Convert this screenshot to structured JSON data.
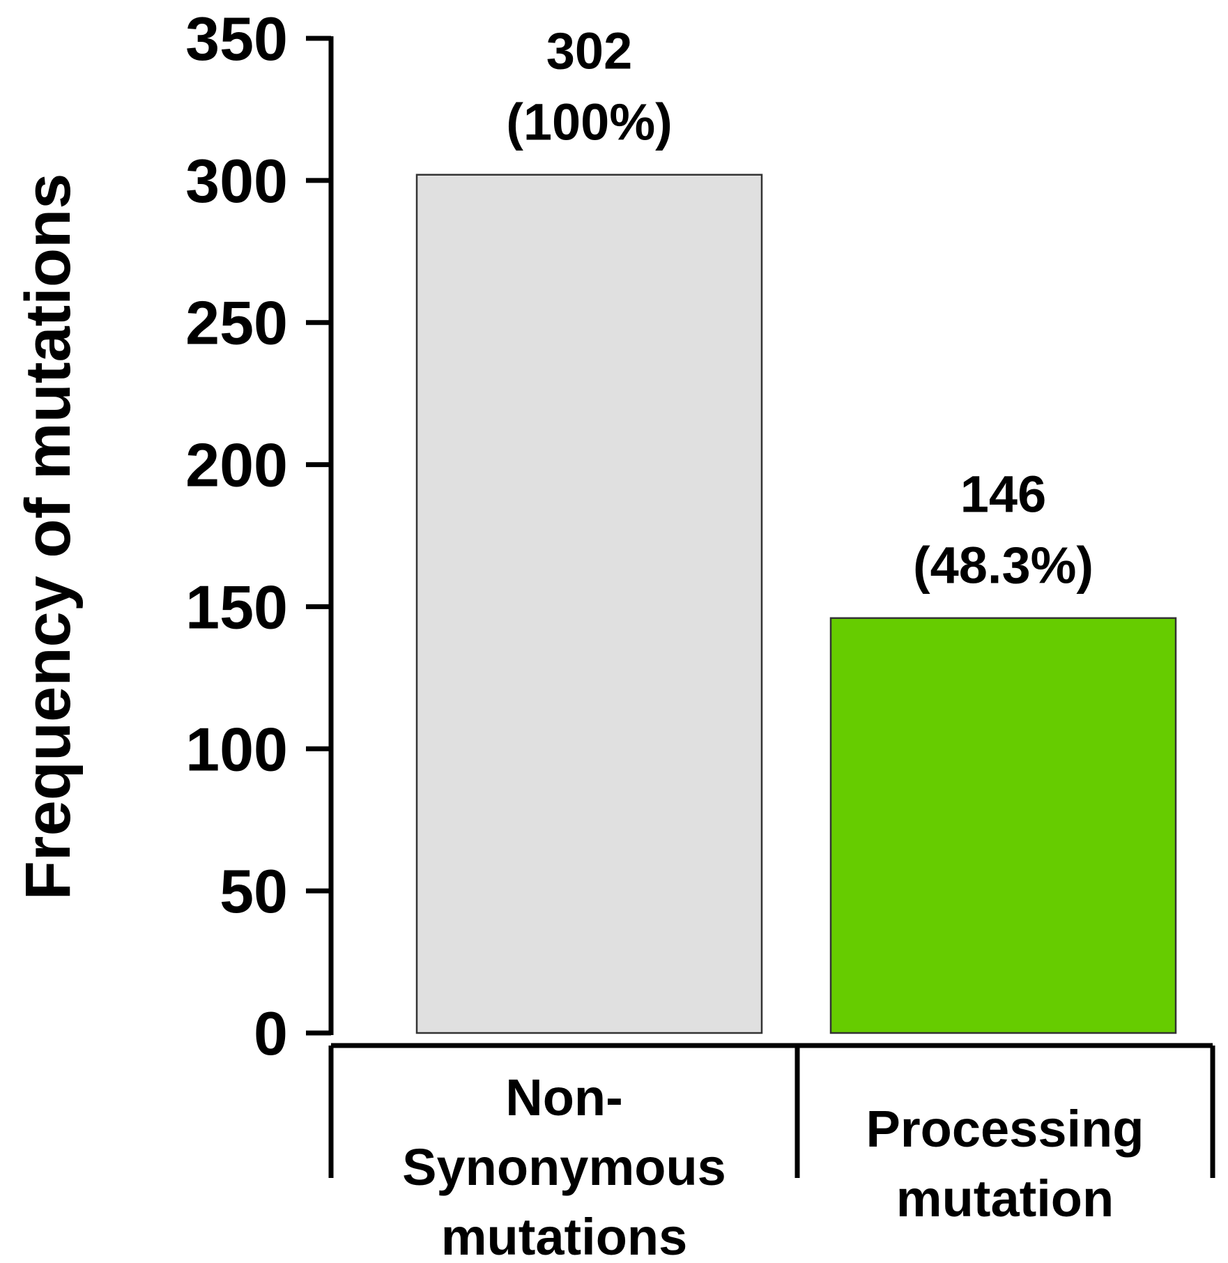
{
  "chart_data": {
    "type": "bar",
    "categories": [
      [
        "Non-",
        "Synonymous",
        "mutations"
      ],
      [
        "Processing",
        "mutation"
      ]
    ],
    "values": [
      302,
      146
    ],
    "value_labels": [
      [
        "302",
        "(100%)"
      ],
      [
        "146",
        "(48.3%)"
      ]
    ],
    "bar_colors": [
      "#e0e0e0",
      "#66cc00"
    ],
    "title": "",
    "xlabel": "",
    "ylabel": "Frequency of mutations",
    "ylim": [
      0,
      350
    ],
    "yticks": [
      0,
      50,
      100,
      150,
      200,
      250,
      300,
      350
    ],
    "grid": false
  }
}
